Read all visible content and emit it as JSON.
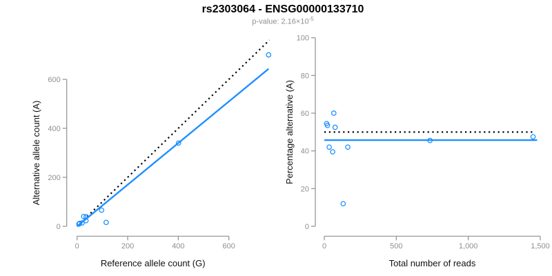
{
  "title": "rs2303064 - ENSG00000133710",
  "subtitle": {
    "prefix": "p-value: 2.16×10",
    "exponent": "-5"
  },
  "colors": {
    "accent_blue": "#1e90ff",
    "dotted_black": "#000000",
    "axis_gray": "#8f8f8f",
    "tick_label_gray": "#8f8f8f",
    "axis_title_black": "#111111",
    "subtitle_gray": "#8f8f8f",
    "background": "#ffffff"
  },
  "chart_data": [
    {
      "type": "scatter",
      "panel": "left",
      "xlabel": "Reference allele count (G)",
      "ylabel": "Alternative allele count (A)",
      "xlim": [
        0,
        760
      ],
      "ylim": [
        0,
        780
      ],
      "grid": false,
      "x_ticks": [
        {
          "v": 0,
          "label": "0"
        },
        {
          "v": 200,
          "label": "200"
        },
        {
          "v": 400,
          "label": "400"
        },
        {
          "v": 600,
          "label": "600"
        }
      ],
      "y_ticks": [
        {
          "v": 0,
          "label": "0"
        },
        {
          "v": 200,
          "label": "200"
        },
        {
          "v": 400,
          "label": "400"
        },
        {
          "v": 600,
          "label": "600"
        }
      ],
      "points": [
        [
          7,
          9
        ],
        [
          10,
          12
        ],
        [
          20,
          14
        ],
        [
          26,
          40
        ],
        [
          35,
          23
        ],
        [
          36,
          39
        ],
        [
          97,
          66
        ],
        [
          115,
          16
        ],
        [
          401,
          340
        ],
        [
          757,
          700
        ]
      ],
      "lines": [
        {
          "name": "identity-line",
          "style": "dotted",
          "color": "#000000",
          "x1": 0,
          "y1": 0,
          "x2": 760,
          "y2": 760
        },
        {
          "name": "fit-line",
          "style": "solid",
          "color": "#1e90ff",
          "x1": 0,
          "y1": 0,
          "x2": 757,
          "y2": 643
        }
      ]
    },
    {
      "type": "scatter",
      "panel": "right",
      "xlabel": "Total number of reads",
      "ylabel": "Percentage alternative (A)",
      "xlim": [
        0,
        1500
      ],
      "ylim": [
        0,
        100
      ],
      "grid": false,
      "x_ticks": [
        {
          "v": 0,
          "label": "0"
        },
        {
          "v": 500,
          "label": "500"
        },
        {
          "v": 1000,
          "label": "1,000"
        },
        {
          "v": 1500,
          "label": "1,500"
        }
      ],
      "y_ticks": [
        {
          "v": 0,
          "label": "0"
        },
        {
          "v": 20,
          "label": "20"
        },
        {
          "v": 40,
          "label": "40"
        },
        {
          "v": 60,
          "label": "60"
        },
        {
          "v": 80,
          "label": "80"
        },
        {
          "v": 100,
          "label": "100"
        }
      ],
      "points": [
        [
          16,
          54.5
        ],
        [
          22,
          53.5
        ],
        [
          34,
          42
        ],
        [
          58,
          39.5
        ],
        [
          66,
          60
        ],
        [
          75,
          52.5
        ],
        [
          131,
          12
        ],
        [
          163,
          42
        ],
        [
          734,
          45.5
        ],
        [
          1450,
          47.5
        ]
      ],
      "lines": [
        {
          "name": "null-50pct-line",
          "style": "dotted",
          "color": "#000000",
          "x1": 0,
          "y1": 50,
          "x2": 1448,
          "y2": 50
        },
        {
          "name": "fit-line",
          "style": "solid",
          "color": "#1e90ff",
          "x1": 0,
          "y1": 45.7,
          "x2": 1478,
          "y2": 45.7
        }
      ]
    }
  ]
}
